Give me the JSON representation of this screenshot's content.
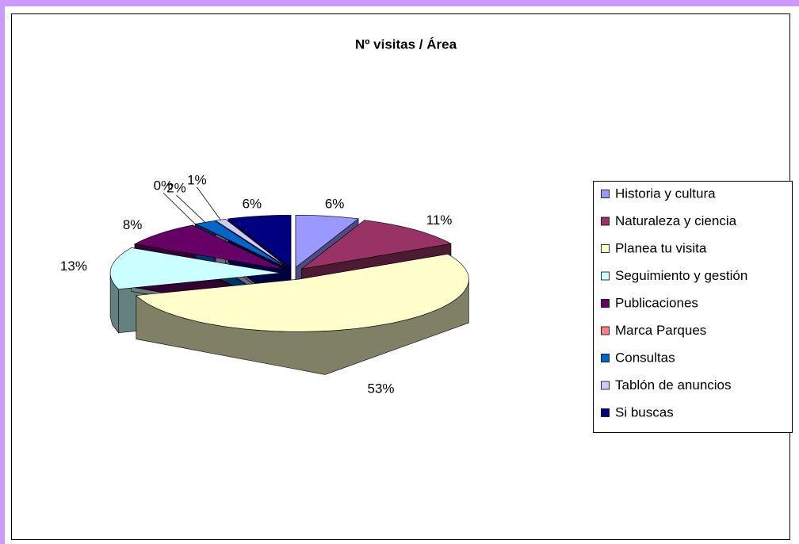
{
  "chart_data": {
    "type": "pie3d",
    "title": "Nº visitas / Área",
    "categories": [
      "Historia y cultura",
      "Naturaleza y ciencia",
      "Planea tu visita",
      "Seguimiento y gestión",
      "Publicaciones",
      "Marca Parques",
      "Consultas",
      "Tablón de anuncios",
      "Si buscas"
    ],
    "values": [
      6,
      11,
      53,
      13,
      8,
      0,
      2,
      1,
      6
    ],
    "value_labels": [
      "6%",
      "11%",
      "53%",
      "13%",
      "8%",
      "0%",
      "2%",
      "1%",
      "6%"
    ],
    "colors": [
      "#9999ff",
      "#993366",
      "#ffffcc",
      "#ccffff",
      "#660066",
      "#ff8080",
      "#0066cc",
      "#ccccff",
      "#000080"
    ],
    "legend": "right"
  }
}
